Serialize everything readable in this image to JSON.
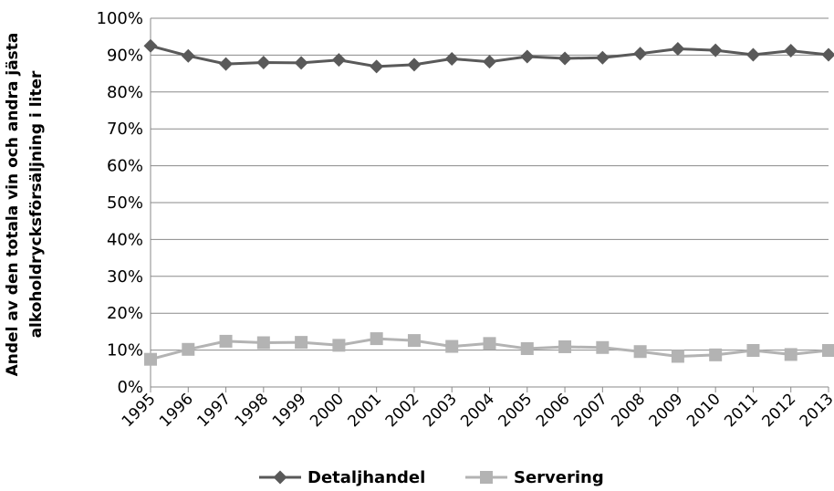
{
  "chart_data": {
    "type": "line",
    "title": "",
    "xlabel": "",
    "ylabel_lines": [
      "Andel av den totala vin och andra jästa",
      "alkoholdrycksförsäljning i liter"
    ],
    "x": [
      "1995",
      "1996",
      "1997",
      "1998",
      "1999",
      "2000",
      "2001",
      "2002",
      "2003",
      "2004",
      "2005",
      "2006",
      "2007",
      "2008",
      "2009",
      "2010",
      "2011",
      "2012",
      "2013"
    ],
    "ylim": [
      0,
      100
    ],
    "yticks": [
      0,
      10,
      20,
      30,
      40,
      50,
      60,
      70,
      80,
      90,
      100
    ],
    "ytick_labels": [
      "0%",
      "10%",
      "20%",
      "30%",
      "40%",
      "50%",
      "60%",
      "70%",
      "80%",
      "90%",
      "100%"
    ],
    "grid": "horizontal",
    "legend_position": "bottom",
    "series": [
      {
        "name": "Detaljhandel",
        "color": "#595959",
        "marker": "diamond",
        "values": [
          92.5,
          89.8,
          87.6,
          88.0,
          87.9,
          88.7,
          86.9,
          87.4,
          89.0,
          88.2,
          89.6,
          89.1,
          89.3,
          90.4,
          91.7,
          91.3,
          90.1,
          91.2,
          90.1
        ]
      },
      {
        "name": "Servering",
        "color": "#b3b3b3",
        "marker": "square",
        "values": [
          7.5,
          10.2,
          12.4,
          12.0,
          12.1,
          11.3,
          13.1,
          12.6,
          11.0,
          11.8,
          10.4,
          10.9,
          10.7,
          9.6,
          8.3,
          8.7,
          9.9,
          8.8,
          9.9
        ]
      }
    ]
  }
}
